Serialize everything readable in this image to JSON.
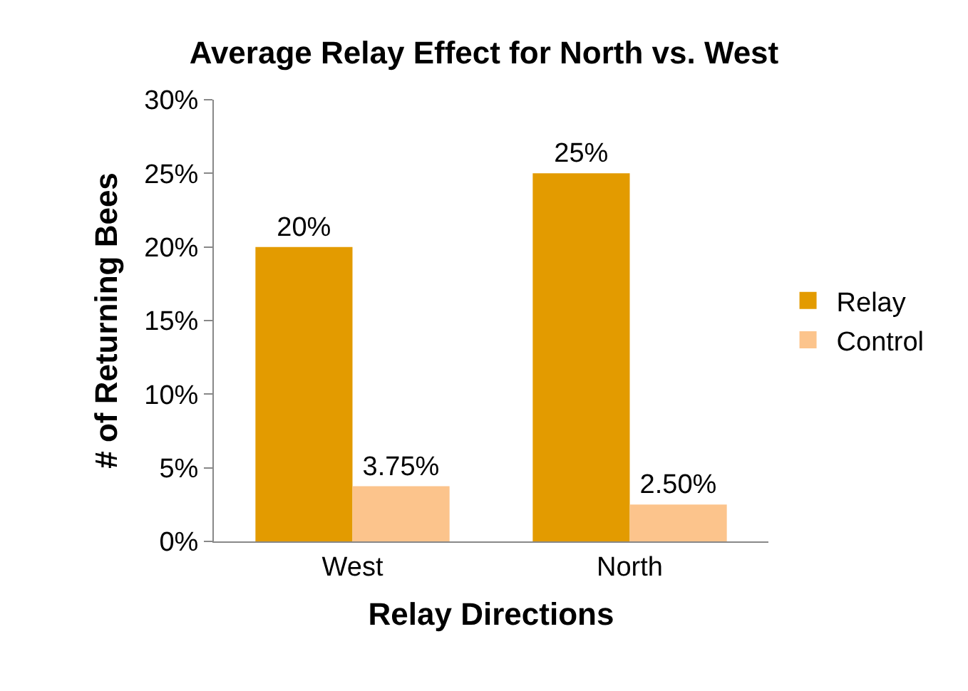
{
  "chart_data": {
    "type": "bar",
    "title": "Average Relay Effect for North vs. West",
    "xlabel": "Relay Directions",
    "ylabel": "# of Returning Bees",
    "categories": [
      "West",
      "North"
    ],
    "series": [
      {
        "name": "Relay",
        "color": "#e39b00",
        "values": [
          20,
          25
        ],
        "value_labels": [
          "20%",
          "25%"
        ]
      },
      {
        "name": "Control",
        "color": "#fcc48c",
        "values": [
          3.75,
          2.5
        ],
        "value_labels": [
          "3.75%",
          "2.50%"
        ]
      }
    ],
    "ylim": [
      0,
      30
    ],
    "yticks": [
      {
        "value": 0,
        "label": "0%"
      },
      {
        "value": 5,
        "label": "5%"
      },
      {
        "value": 10,
        "label": "10%"
      },
      {
        "value": 15,
        "label": "15%"
      },
      {
        "value": 20,
        "label": "20%"
      },
      {
        "value": 25,
        "label": "25%"
      },
      {
        "value": 30,
        "label": "30%"
      }
    ],
    "grid": false,
    "legend": "right"
  }
}
